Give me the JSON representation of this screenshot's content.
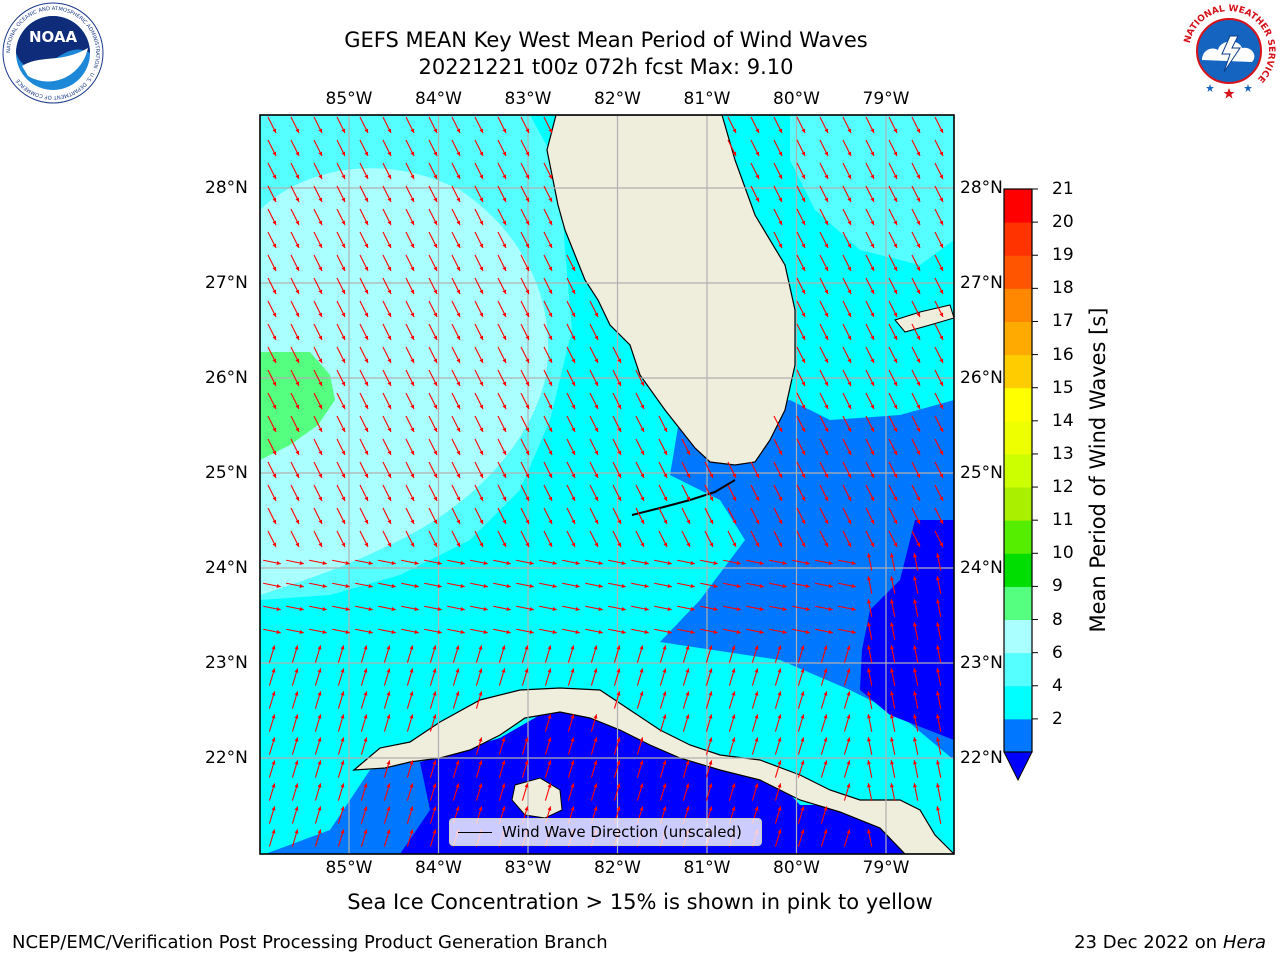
{
  "header": {
    "title_line1": "GEFS MEAN Key West Mean Period of Wind Waves",
    "title_line2": "20221221 t00z 072h fcst   Max: 9.10"
  },
  "logos": {
    "noaa": "NOAA",
    "noaa_ring": "NATIONAL OCEANIC AND ATMOSPHERIC ADMINISTRATION · U.S. DEPARTMENT OF COMMERCE",
    "nws_ring": "NATIONAL WEATHER SERVICE"
  },
  "map": {
    "lon_labels": [
      "85°W",
      "84°W",
      "83°W",
      "82°W",
      "81°W",
      "80°W",
      "79°W"
    ],
    "lat_labels": [
      "28°N",
      "27°N",
      "26°N",
      "25°N",
      "24°N",
      "23°N",
      "22°N"
    ],
    "legend": "Wind Wave Direction (unscaled)",
    "colors": {
      "land": "#efeddc",
      "arrow": "#ff0000",
      "period_2_4": "#0077ff",
      "period_4_6": "#00ffff",
      "period_6_8": "#55ffff",
      "period_8_9": "#aaffff",
      "period_9_10": "#55ff7f",
      "below_2": "#0000ff",
      "grid": "#b0b0b0"
    }
  },
  "colorbar": {
    "label": "Mean Period of Wind Waves [s]",
    "ticks": [
      "21",
      "20",
      "19",
      "18",
      "17",
      "16",
      "15",
      "14",
      "13",
      "12",
      "11",
      "10",
      "9",
      "8",
      "6",
      "4",
      "2"
    ],
    "colors_bottom_to_top": [
      "#0077ff",
      "#00ffff",
      "#55ffff",
      "#aaffff",
      "#55ff7f",
      "#00dd00",
      "#55ee00",
      "#aaee00",
      "#ccff00",
      "#eeff00",
      "#ffff00",
      "#ffcc00",
      "#ffaa00",
      "#ff8800",
      "#ff5500",
      "#ff3300",
      "#ff0000"
    ],
    "under_color": "#0000ff"
  },
  "notes": {
    "sea_ice": "Sea Ice Concentration > 15% is shown in pink to yellow",
    "footer_left": "NCEP/EMC/Verification Post Processing Product Generation Branch",
    "footer_date": "23 Dec 2022 on",
    "footer_machine": "Hera"
  }
}
